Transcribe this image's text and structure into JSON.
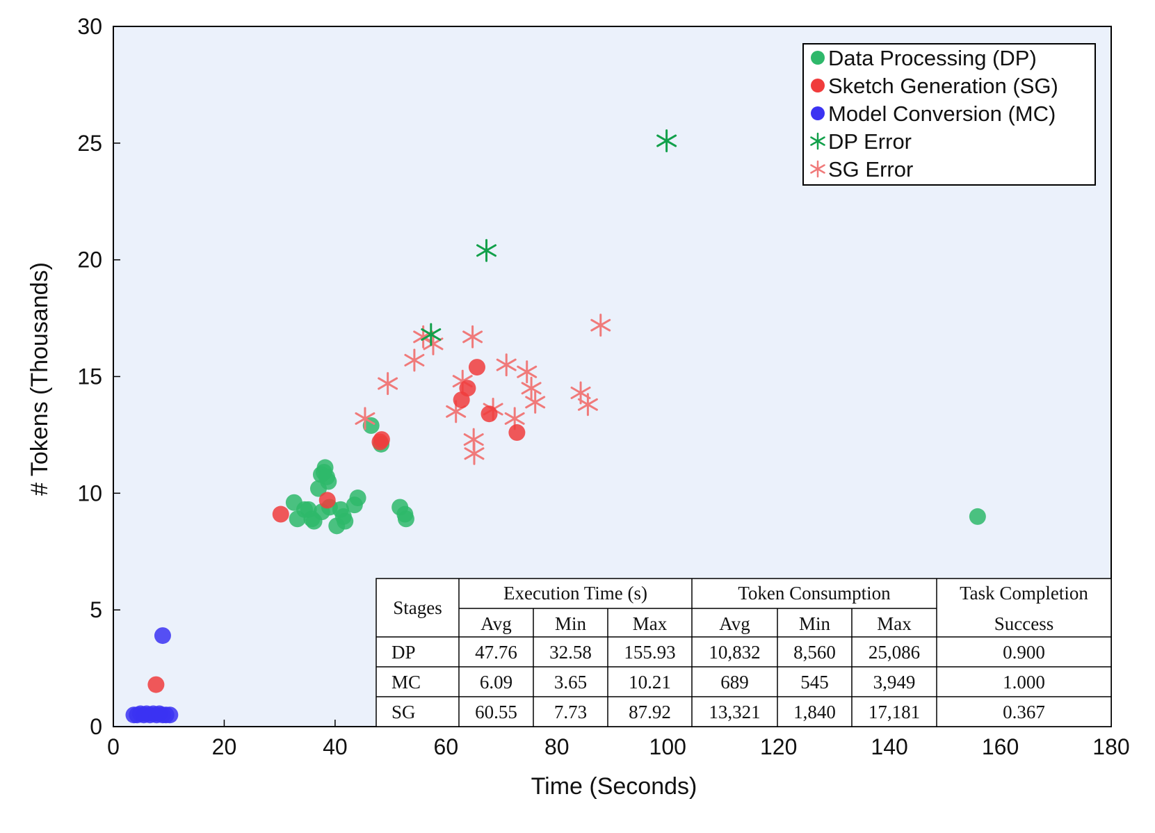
{
  "chart_data": {
    "type": "scatter",
    "xlabel": "Time (Seconds)",
    "ylabel": "# Tokens (Thousands)",
    "xlim": [
      0,
      180
    ],
    "ylim": [
      0,
      30
    ],
    "xticks": [
      "0",
      "20",
      "40",
      "60",
      "80",
      "100",
      "120",
      "140",
      "160",
      "180"
    ],
    "yticks": [
      "0",
      "5",
      "10",
      "15",
      "20",
      "25",
      "30"
    ],
    "grid": false,
    "legend_position": "top-right",
    "plot_background": "#ebf1fb",
    "series": [
      {
        "name": "Data Processing (DP)",
        "marker": "circle",
        "color": "#2eb86a",
        "points": [
          [
            32.6,
            9.6
          ],
          [
            33.2,
            8.9
          ],
          [
            34.5,
            9.3
          ],
          [
            35.2,
            9.3
          ],
          [
            35.8,
            8.9
          ],
          [
            36.2,
            8.8
          ],
          [
            37.0,
            10.2
          ],
          [
            37.5,
            10.8
          ],
          [
            37.6,
            9.2
          ],
          [
            38.0,
            10.9
          ],
          [
            38.2,
            11.1
          ],
          [
            38.5,
            10.7
          ],
          [
            38.8,
            10.5
          ],
          [
            39.0,
            9.4
          ],
          [
            40.3,
            8.6
          ],
          [
            41.0,
            9.3
          ],
          [
            41.5,
            9.0
          ],
          [
            41.8,
            8.8
          ],
          [
            43.5,
            9.5
          ],
          [
            44.1,
            9.8
          ],
          [
            46.5,
            12.9
          ],
          [
            48.3,
            12.1
          ],
          [
            51.7,
            9.4
          ],
          [
            52.6,
            9.1
          ],
          [
            52.8,
            8.9
          ],
          [
            155.9,
            9.0
          ]
        ]
      },
      {
        "name": "Sketch Generation (SG)",
        "marker": "circle",
        "color": "#f03c3c",
        "points": [
          [
            30.2,
            9.1
          ],
          [
            38.6,
            9.7
          ],
          [
            48.1,
            12.2
          ],
          [
            48.4,
            12.3
          ],
          [
            62.8,
            14.0
          ],
          [
            63.9,
            14.5
          ],
          [
            65.6,
            15.4
          ],
          [
            67.8,
            13.4
          ],
          [
            72.8,
            12.6
          ],
          [
            7.7,
            1.8
          ]
        ]
      },
      {
        "name": "Model Conversion (MC)",
        "marker": "circle",
        "color": "#3b33f2",
        "points": [
          [
            3.7,
            0.5
          ],
          [
            4.3,
            0.5
          ],
          [
            4.9,
            0.55
          ],
          [
            5.5,
            0.5
          ],
          [
            6.0,
            0.55
          ],
          [
            6.6,
            0.5
          ],
          [
            7.2,
            0.55
          ],
          [
            7.8,
            0.5
          ],
          [
            8.3,
            0.55
          ],
          [
            8.9,
            0.5
          ],
          [
            9.5,
            0.5
          ],
          [
            10.2,
            0.5
          ],
          [
            8.9,
            3.9
          ]
        ]
      },
      {
        "name": "DP Error",
        "marker": "star",
        "color": "#11a04a",
        "points": [
          [
            57.3,
            16.8
          ],
          [
            67.3,
            20.4
          ],
          [
            99.8,
            25.1
          ]
        ]
      },
      {
        "name": "SG Error",
        "marker": "star",
        "color": "#f07a7a",
        "points": [
          [
            45.4,
            13.2
          ],
          [
            49.5,
            14.7
          ],
          [
            54.3,
            15.7
          ],
          [
            55.9,
            16.7
          ],
          [
            57.7,
            16.4
          ],
          [
            61.8,
            13.5
          ],
          [
            63.0,
            14.8
          ],
          [
            64.8,
            16.7
          ],
          [
            65.0,
            12.3
          ],
          [
            65.1,
            11.7
          ],
          [
            68.5,
            13.6
          ],
          [
            70.9,
            15.5
          ],
          [
            72.4,
            13.2
          ],
          [
            74.6,
            15.2
          ],
          [
            75.4,
            14.5
          ],
          [
            76.1,
            13.9
          ],
          [
            84.3,
            14.3
          ],
          [
            85.6,
            13.8
          ],
          [
            87.9,
            17.2
          ]
        ]
      }
    ],
    "table": {
      "group_headers": [
        "Stages",
        "Execution Time (s)",
        "Token Consumption",
        "Task Completion"
      ],
      "sub_headers": [
        "Avg",
        "Min",
        "Max",
        "Avg",
        "Min",
        "Max",
        "Success"
      ],
      "rows": [
        [
          "DP",
          "47.76",
          "32.58",
          "155.93",
          "10,832",
          "8,560",
          "25,086",
          "0.900"
        ],
        [
          "MC",
          "6.09",
          "3.65",
          "10.21",
          "689",
          "545",
          "3,949",
          "1.000"
        ],
        [
          "SG",
          "60.55",
          "7.73",
          "87.92",
          "13,321",
          "1,840",
          "17,181",
          "0.367"
        ]
      ]
    }
  }
}
